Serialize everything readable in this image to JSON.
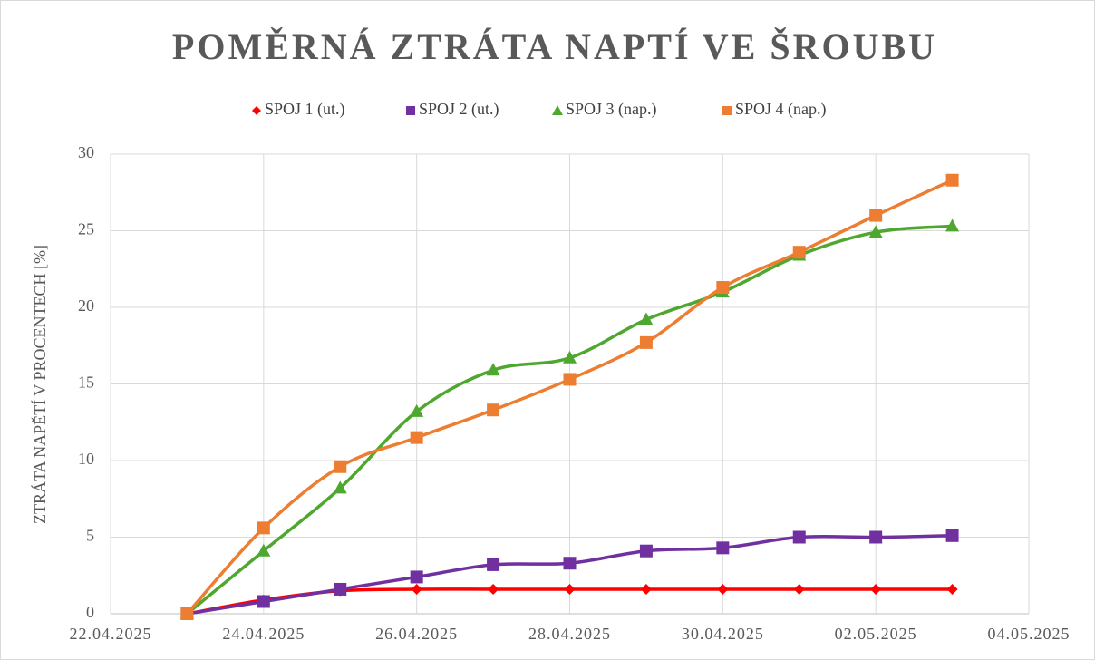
{
  "chart_data": {
    "type": "scatter",
    "title": "POMĚRNÁ ZTRÁTA NAPTÍ VE ŠROUBU",
    "y_label": "ZTRÁTA NAPĚTÍ  V PROCENTECH [%]",
    "x": [
      "23.04.2025",
      "24.04.2025",
      "25.04.2025",
      "26.04.2025",
      "27.04.2025",
      "28.04.2025",
      "29.04.2025",
      "30.04.2025",
      "01.05.2025",
      "02.05.2025",
      "03.05.2025"
    ],
    "series": [
      {
        "name": "SPOJ 1 (ut.)",
        "color": "#ff0000",
        "marker": "diamond",
        "values": [
          0,
          0.9,
          1.5,
          1.6,
          1.6,
          1.6,
          1.6,
          1.6,
          1.6,
          1.6,
          1.6
        ]
      },
      {
        "name": "SPOJ 2 (ut.)",
        "color": "#7030a0",
        "marker": "square",
        "values": [
          0,
          0.8,
          1.6,
          2.4,
          3.2,
          3.3,
          4.1,
          4.3,
          5.0,
          5.0,
          5.1
        ]
      },
      {
        "name": "SPOJ 3 (nap.)",
        "color": "#4ea72e",
        "marker": "triangle",
        "values": [
          0,
          4.1,
          8.2,
          13.2,
          15.9,
          16.7,
          19.2,
          21.0,
          23.4,
          24.9,
          25.3
        ]
      },
      {
        "name": "SPOJ 4 (nap.)",
        "color": "#ed7d31",
        "marker": "square",
        "values": [
          0,
          5.6,
          9.6,
          11.5,
          13.3,
          15.3,
          17.7,
          21.3,
          23.6,
          26.0,
          28.3
        ]
      }
    ],
    "xlim": [
      "22.04.2025",
      "04.05.2025"
    ],
    "xticks": [
      "22.04.2025",
      "24.04.2025",
      "26.04.2025",
      "28.04.2025",
      "30.04.2025",
      "02.05.2025",
      "04.05.2025"
    ],
    "ylim": [
      0,
      30
    ],
    "yticks": [
      0,
      5,
      10,
      15,
      20,
      25,
      30
    ],
    "grid": true,
    "legend": "top"
  }
}
